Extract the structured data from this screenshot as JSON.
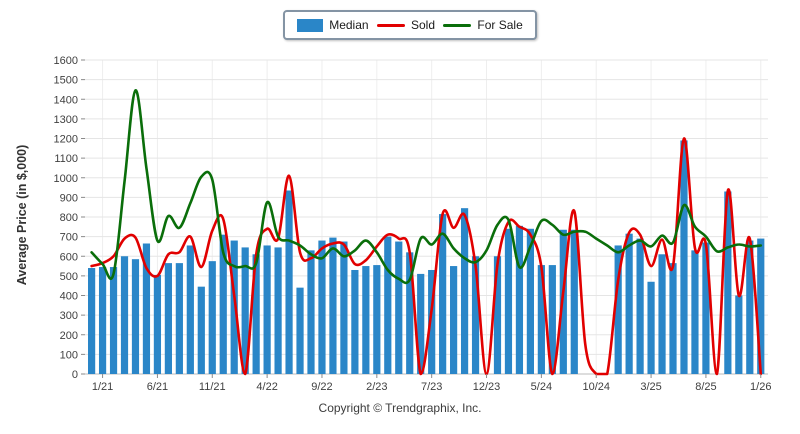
{
  "legend": {
    "items": [
      {
        "label": "Median",
        "type": "bar",
        "color": "#2a86c8"
      },
      {
        "label": "Sold",
        "type": "line",
        "color": "#e10000"
      },
      {
        "label": "For Sale",
        "type": "line",
        "color": "#0a6e0a"
      }
    ]
  },
  "y_axis": {
    "title": "Average Price (in $,000)",
    "min": 0,
    "max": 1600,
    "step": 100
  },
  "x_axis": {
    "tick_labels": [
      "1/21",
      "6/21",
      "11/21",
      "4/22",
      "9/22",
      "2/23",
      "7/23",
      "12/23",
      "5/24",
      "10/24",
      "3/25",
      "8/25",
      "1/26"
    ],
    "tick_month_indices": [
      1,
      6,
      11,
      16,
      21,
      26,
      31,
      36,
      41,
      46,
      51,
      56,
      61
    ]
  },
  "footer": {
    "copyright": "Copyright © Trendgraphix, Inc."
  },
  "chart_data": {
    "type": "bar",
    "title": "",
    "ylabel": "Average Price (in $,000)",
    "ylim": [
      0,
      1600
    ],
    "grid": true,
    "legend_position": "top-center",
    "note": "value 0 means no data shown for that month",
    "months": [
      "12/20",
      "1/21",
      "2/21",
      "3/21",
      "4/21",
      "5/21",
      "6/21",
      "7/21",
      "8/21",
      "9/21",
      "10/21",
      "11/21",
      "12/21",
      "1/22",
      "2/22",
      "3/22",
      "4/22",
      "5/22",
      "6/22",
      "7/22",
      "8/22",
      "9/22",
      "10/22",
      "11/22",
      "12/22",
      "1/23",
      "2/23",
      "3/23",
      "4/23",
      "5/23",
      "6/23",
      "7/23",
      "8/23",
      "9/23",
      "10/23",
      "11/23",
      "12/23",
      "1/24",
      "2/24",
      "3/24",
      "4/24",
      "5/24",
      "6/24",
      "7/24",
      "8/24",
      "9/24",
      "10/24",
      "11/24",
      "12/24",
      "1/25",
      "2/25",
      "3/25",
      "4/25",
      "5/25",
      "6/25",
      "7/25",
      "8/25",
      "9/25",
      "10/25",
      "11/25",
      "12/25",
      "1/26"
    ],
    "series": [
      {
        "name": "Median",
        "type": "bar",
        "color": "#2a86c8",
        "values": [
          540,
          545,
          545,
          600,
          585,
          665,
          505,
          565,
          565,
          655,
          445,
          575,
          710,
          680,
          645,
          610,
          655,
          645,
          935,
          440,
          630,
          680,
          695,
          675,
          530,
          550,
          555,
          700,
          675,
          620,
          510,
          530,
          815,
          550,
          845,
          600,
          0,
          600,
          740,
          755,
          740,
          555,
          555,
          735,
          735,
          0,
          0,
          0,
          655,
          715,
          690,
          470,
          610,
          565,
          1190,
          630,
          670,
          0,
          930,
          400,
          680,
          690
        ]
      },
      {
        "name": "Sold",
        "type": "line",
        "color": "#e10000",
        "values": [
          550,
          565,
          600,
          690,
          695,
          540,
          500,
          610,
          620,
          700,
          545,
          730,
          790,
          400,
          0,
          610,
          740,
          690,
          1010,
          620,
          590,
          640,
          665,
          660,
          560,
          580,
          650,
          710,
          690,
          620,
          0,
          330,
          815,
          745,
          810,
          550,
          0,
          560,
          775,
          750,
          710,
          545,
          0,
          420,
          830,
          150,
          0,
          0,
          480,
          720,
          710,
          550,
          685,
          550,
          1200,
          640,
          660,
          0,
          935,
          400,
          690,
          0
        ]
      },
      {
        "name": "For Sale",
        "type": "line",
        "color": "#0a6e0a",
        "values": [
          620,
          560,
          510,
          980,
          1445,
          1050,
          680,
          805,
          745,
          870,
          1005,
          990,
          620,
          550,
          550,
          565,
          875,
          700,
          680,
          655,
          610,
          590,
          640,
          600,
          630,
          680,
          620,
          530,
          485,
          480,
          690,
          660,
          715,
          640,
          590,
          570,
          630,
          760,
          785,
          545,
          650,
          780,
          760,
          710,
          725,
          725,
          690,
          655,
          620,
          655,
          680,
          650,
          705,
          670,
          860,
          750,
          700,
          625,
          645,
          660,
          650,
          655
        ]
      }
    ]
  }
}
